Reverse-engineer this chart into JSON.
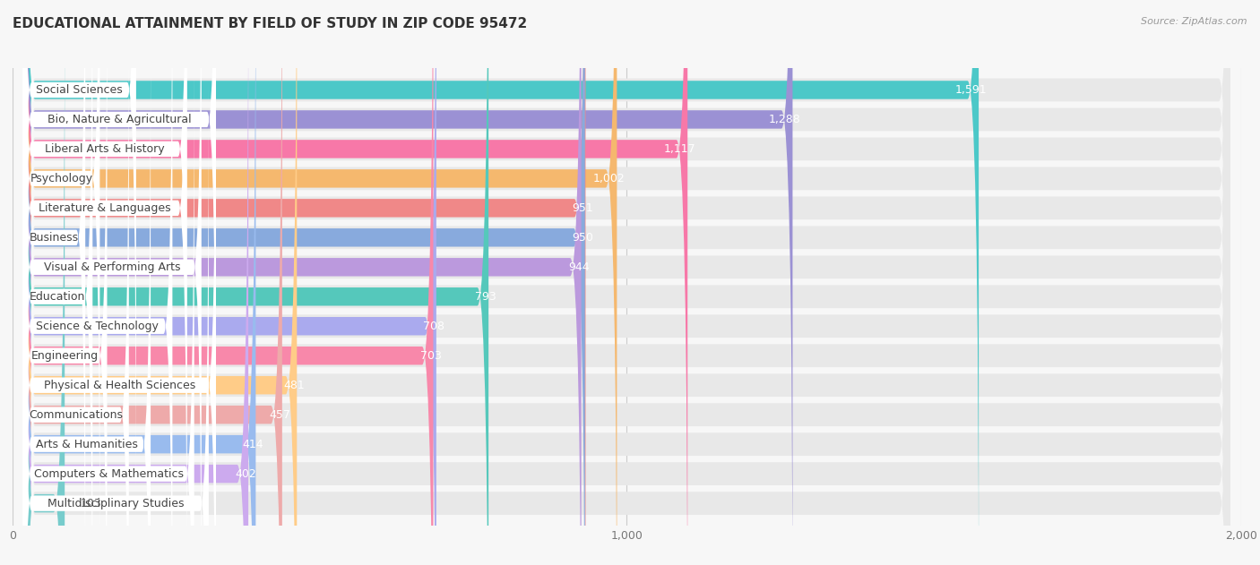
{
  "title": "EDUCATIONAL ATTAINMENT BY FIELD OF STUDY IN ZIP CODE 95472",
  "source": "Source: ZipAtlas.com",
  "categories": [
    "Social Sciences",
    "Bio, Nature & Agricultural",
    "Liberal Arts & History",
    "Psychology",
    "Literature & Languages",
    "Business",
    "Visual & Performing Arts",
    "Education",
    "Science & Technology",
    "Engineering",
    "Physical & Health Sciences",
    "Communications",
    "Arts & Humanities",
    "Computers & Mathematics",
    "Multidisciplinary Studies"
  ],
  "values": [
    1591,
    1288,
    1117,
    1002,
    951,
    950,
    944,
    793,
    708,
    703,
    481,
    457,
    414,
    402,
    103
  ],
  "bar_colors": [
    "#4cc8c8",
    "#9b91d4",
    "#f778a8",
    "#f5b86e",
    "#f08888",
    "#88aadd",
    "#bb99dd",
    "#55c8bb",
    "#aaaaee",
    "#f888aa",
    "#ffcc88",
    "#eeaaaa",
    "#99bbee",
    "#ccaaee",
    "#77cccc"
  ],
  "xlim": [
    0,
    2000
  ],
  "xticks": [
    0,
    1000,
    2000
  ],
  "bg_row_color": "#ebebeb",
  "bar_bg_color": "#f0f0f0",
  "label_bg_color": "#ffffff",
  "background_color": "#f7f7f7",
  "title_fontsize": 11,
  "label_fontsize": 9,
  "value_fontsize": 9,
  "source_fontsize": 8
}
